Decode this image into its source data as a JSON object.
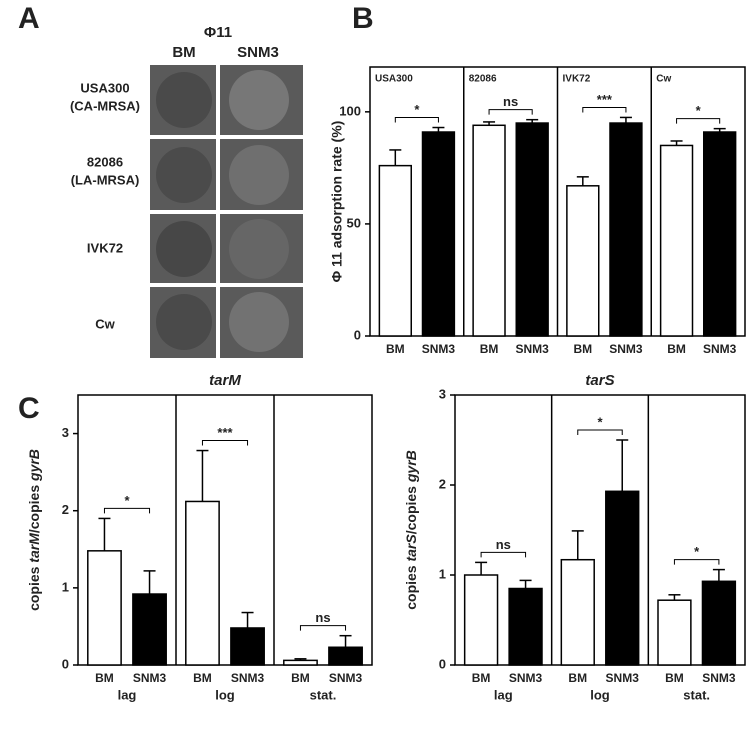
{
  "panel_a": {
    "label": "A",
    "title": "Φ11",
    "columns": [
      "BM",
      "SNM3"
    ],
    "rows": [
      [
        "USA300",
        "(CA-MRSA)"
      ],
      [
        "82086",
        "(LA-MRSA)"
      ],
      [
        "IVK72"
      ],
      [
        "Cw"
      ]
    ]
  },
  "chart_data": [
    {
      "type": "bar",
      "label": "B",
      "ylabel": "Φ 11 adsorption rate (%)",
      "category_labels": "inside-top",
      "categories": [
        "USA300",
        "82086",
        "IVK72",
        "Cw"
      ],
      "series": [
        {
          "name": "BM",
          "color": "#ffffff",
          "values": [
            76,
            94,
            67,
            85
          ],
          "errors": [
            7,
            1.5,
            4,
            2
          ]
        },
        {
          "name": "SNM3",
          "color": "#000000",
          "values": [
            91,
            95,
            95,
            91
          ],
          "errors": [
            2,
            1.5,
            2.5,
            1.5
          ]
        }
      ],
      "annotations": [
        "*",
        "ns",
        "***",
        "*"
      ],
      "ylim": [
        0,
        120
      ],
      "yticks": [
        0,
        50,
        100
      ]
    },
    {
      "type": "bar",
      "label": "C",
      "title": "tarM",
      "ylabel": [
        "copies ",
        "tarM",
        "/copies ",
        "gyrB"
      ],
      "category_labels": "bottom",
      "categories": [
        "lag",
        "log",
        "stat."
      ],
      "series": [
        {
          "name": "BM",
          "color": "#ffffff",
          "values": [
            1.48,
            2.12,
            0.06
          ],
          "errors": [
            0.42,
            0.66,
            0.02
          ]
        },
        {
          "name": "SNM3",
          "color": "#000000",
          "values": [
            0.92,
            0.48,
            0.23
          ],
          "errors": [
            0.3,
            0.2,
            0.15
          ]
        }
      ],
      "annotations": [
        "*",
        "***",
        "ns"
      ],
      "ylim": [
        0,
        3.5
      ],
      "yticks": [
        0,
        1,
        2,
        3
      ]
    },
    {
      "type": "bar",
      "title": "tarS",
      "ylabel": [
        "copies ",
        "tarS",
        "/copies ",
        "gyrB"
      ],
      "category_labels": "bottom",
      "categories": [
        "lag",
        "log",
        "stat."
      ],
      "series": [
        {
          "name": "BM",
          "color": "#ffffff",
          "values": [
            1.0,
            1.17,
            0.72
          ],
          "errors": [
            0.14,
            0.32,
            0.06
          ]
        },
        {
          "name": "SNM3",
          "color": "#000000",
          "values": [
            0.85,
            1.93,
            0.93
          ],
          "errors": [
            0.09,
            0.57,
            0.13
          ]
        }
      ],
      "annotations": [
        "ns",
        "*",
        "*"
      ],
      "ylim": [
        0,
        3
      ],
      "yticks": [
        0,
        1,
        2,
        3
      ]
    }
  ]
}
